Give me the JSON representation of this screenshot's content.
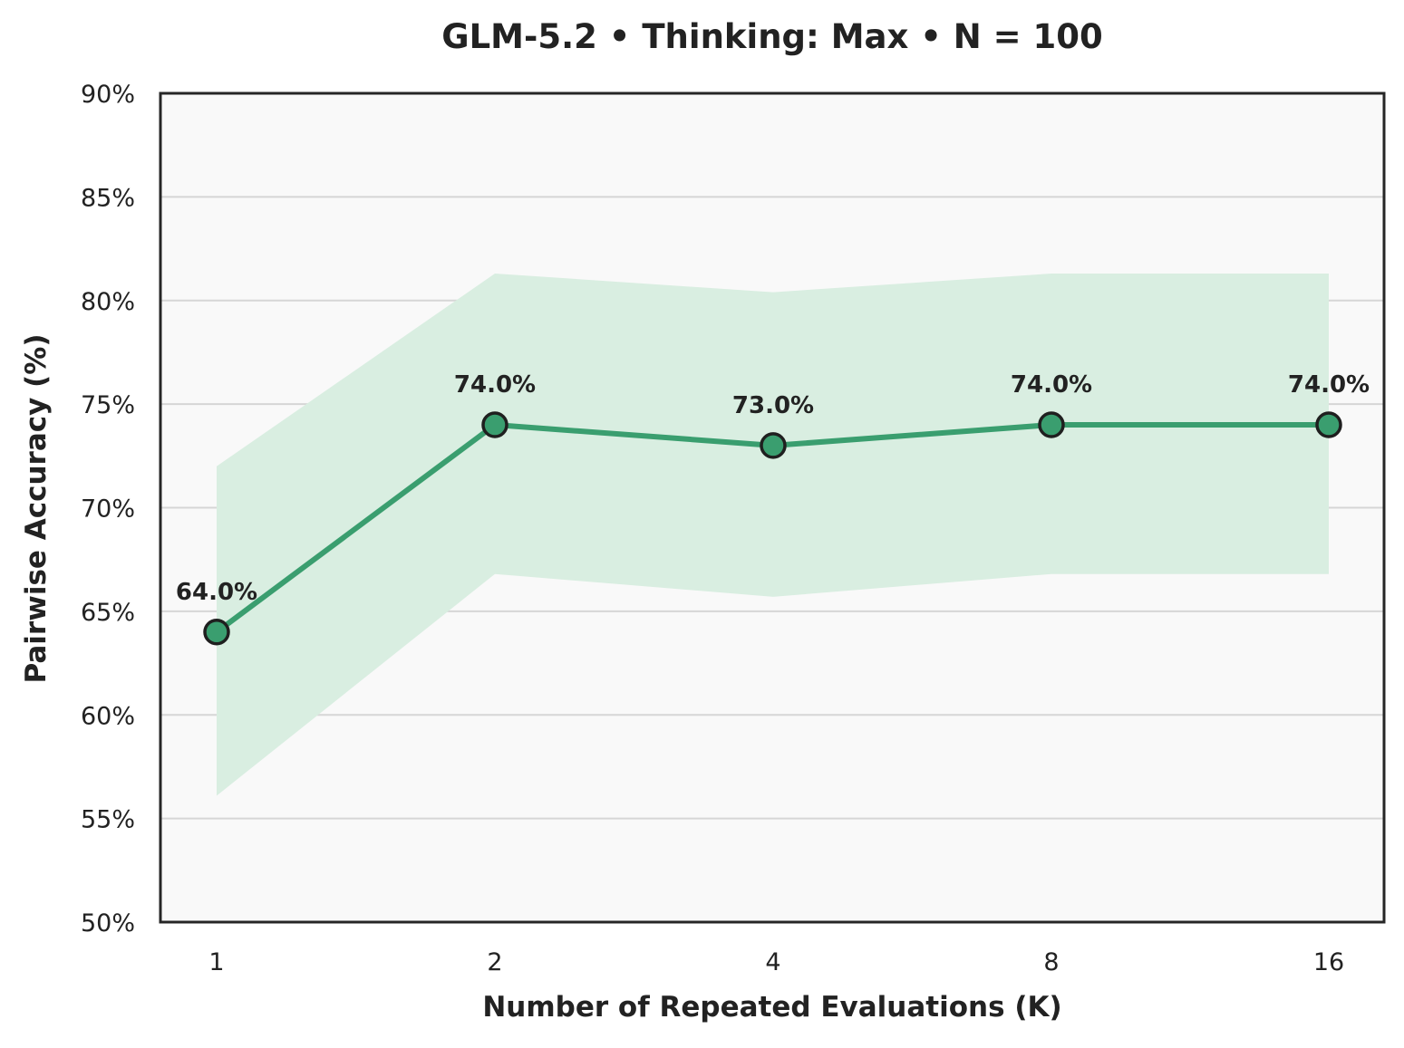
{
  "chart_data": {
    "type": "line",
    "title": "GLM-5.2 • Thinking: Max • N = 100",
    "xlabel": "Number of Repeated Evaluations (K)",
    "ylabel": "Pairwise Accuracy (%)",
    "categories": [
      "1",
      "2",
      "4",
      "8",
      "16"
    ],
    "series": [
      {
        "values": [
          64.0,
          74.0,
          73.0,
          74.0,
          74.0
        ],
        "data_labels": [
          "64.0%",
          "74.0%",
          "73.0%",
          "74.0%",
          "74.0%"
        ],
        "band_upper": [
          72.0,
          81.3,
          80.4,
          81.3,
          81.3
        ],
        "band_lower": [
          56.1,
          66.8,
          65.7,
          66.8,
          66.8
        ]
      }
    ],
    "ylim": [
      50,
      90
    ],
    "yticks": [
      50,
      55,
      60,
      65,
      70,
      75,
      80,
      85,
      90
    ],
    "ytick_labels": [
      "50%",
      "55%",
      "60%",
      "65%",
      "70%",
      "75%",
      "80%",
      "85%",
      "90%"
    ],
    "grid": "horizontal",
    "colors": {
      "line": "#3a9e6f",
      "marker_fill": "#3a9e6f",
      "marker_edge": "#1f1f1f",
      "band": "#d9eee1",
      "plot_background": "#f9f9f9",
      "grid": "#d6d6d6",
      "frame": "#262626"
    }
  }
}
